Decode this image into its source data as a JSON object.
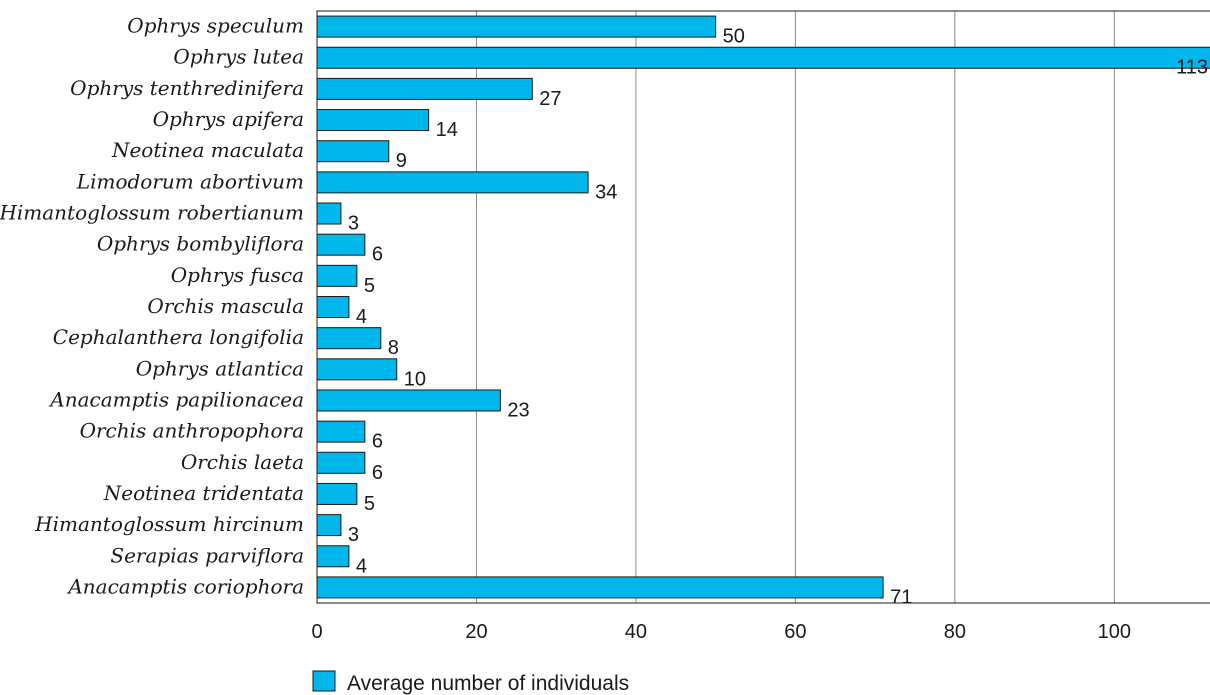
{
  "chart_data": {
    "type": "bar",
    "orientation": "horizontal",
    "categories": [
      "Ophrys speculum",
      "Ophrys lutea",
      "Ophrys tenthredinifera",
      "Ophrys apifera",
      "Neotinea maculata",
      "Limodorum abortivum",
      "Himantoglossum robertianum",
      "Ophrys bombyliflora",
      "Ophrys fusca",
      "Orchis mascula",
      "Cephalanthera longifolia",
      "Ophrys atlantica",
      "Anacamptis papilionacea",
      "Orchis anthropophora",
      "Orchis laeta",
      "Neotinea tridentata",
      "Himantoglossum hircinum",
      "Serapias parviflora",
      "Anacamptis coriophora"
    ],
    "series": [
      {
        "name": "Average number of individuals",
        "values": [
          50,
          113,
          27,
          14,
          9,
          34,
          3,
          6,
          5,
          4,
          8,
          10,
          23,
          6,
          6,
          5,
          3,
          4,
          71
        ],
        "color": "#00b7eb"
      }
    ],
    "xticks": [
      "0",
      "20",
      "40",
      "60",
      "80",
      "100"
    ],
    "xlim": [
      0,
      112
    ],
    "grid": true,
    "legend_position": "bottom-left",
    "title": "",
    "xlabel": "",
    "ylabel": ""
  }
}
